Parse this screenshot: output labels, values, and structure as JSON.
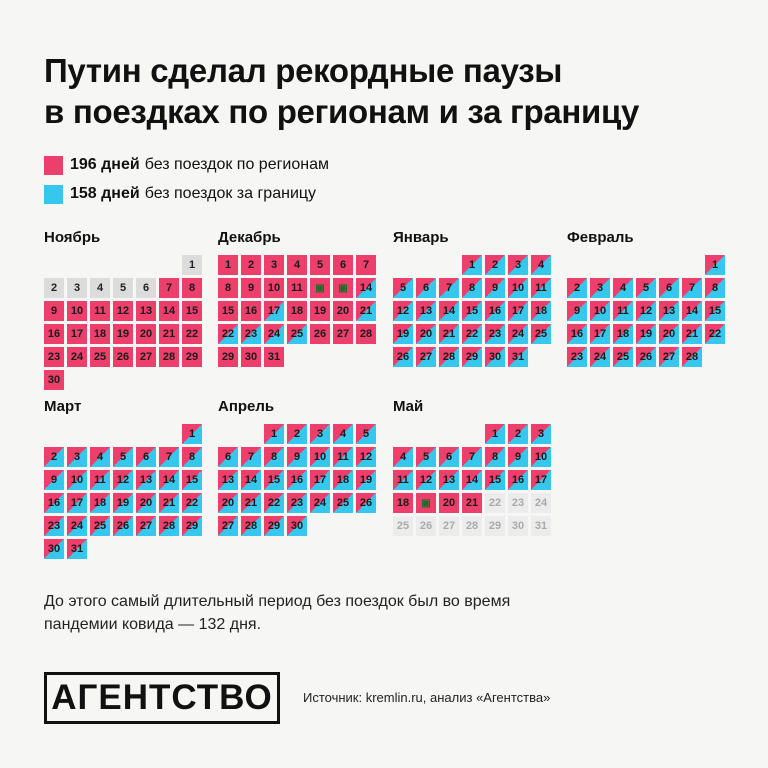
{
  "title_lines": [
    "Путин сделал рекордные паузы",
    "в поездках по регионам и за границу"
  ],
  "legend": [
    {
      "value": "196 дней",
      "label": "без поездок по регионам",
      "color": "#ec3f6b"
    },
    {
      "value": "158 дней",
      "label": "без поездок за границу",
      "color": "#35c7ec"
    }
  ],
  "colors": {
    "regions": "#ec3f6b",
    "abroad": "#35c7ec",
    "none": "#dcdcdc",
    "future": "#ececec",
    "trip_icon": "#1f6b2a"
  },
  "months": [
    {
      "name": "Ноябрь",
      "first_weekday": 6,
      "days": 30,
      "status": "1-6:none,7-30:pink"
    },
    {
      "name": "Декабрь",
      "first_weekday": 0,
      "days": 31,
      "status": "1-11:pink,12-13:icon,14:diag,15-16:pink,17:diag,18-20:pink,21-25:diag,26-31:pink"
    },
    {
      "name": "Январь",
      "first_weekday": 3,
      "days": 31,
      "status": "1-31:diag"
    },
    {
      "name": "Февраль",
      "first_weekday": 6,
      "days": 28,
      "status": "1-28:diag"
    },
    {
      "name": "Март",
      "first_weekday": 6,
      "days": 31,
      "status": "1-31:diag"
    },
    {
      "name": "Апрель",
      "first_weekday": 2,
      "days": 30,
      "status": "1-30:diag"
    },
    {
      "name": "Май",
      "first_weekday": 4,
      "days": 31,
      "status": "1-17:diag,18:pink,19:icon-pink,20-21:pink,22-31:future"
    }
  ],
  "trip_icon": "trip-marker-icon",
  "note": "До этого самый длительный период без поездок был во время пандемии ковида — 132 дня.",
  "logo": "АГЕНТСТВО",
  "source": "Источник: kremlin.ru, анализ «Агентства»"
}
